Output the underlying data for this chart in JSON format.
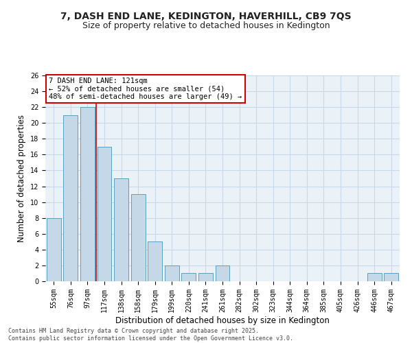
{
  "title": "7, DASH END LANE, KEDINGTON, HAVERHILL, CB9 7QS",
  "subtitle": "Size of property relative to detached houses in Kedington",
  "xlabel": "Distribution of detached houses by size in Kedington",
  "ylabel": "Number of detached properties",
  "categories": [
    "55sqm",
    "76sqm",
    "97sqm",
    "117sqm",
    "138sqm",
    "158sqm",
    "179sqm",
    "199sqm",
    "220sqm",
    "241sqm",
    "261sqm",
    "282sqm",
    "302sqm",
    "323sqm",
    "344sqm",
    "364sqm",
    "385sqm",
    "405sqm",
    "426sqm",
    "446sqm",
    "467sqm"
  ],
  "values": [
    8,
    21,
    22,
    17,
    13,
    11,
    5,
    2,
    1,
    1,
    2,
    0,
    0,
    0,
    0,
    0,
    0,
    0,
    0,
    1,
    1
  ],
  "bar_color": "#c5d8e8",
  "bar_edge_color": "#5a9fc0",
  "vline_x": 2.5,
  "vline_color": "#cc0000",
  "annotation_line1": "7 DASH END LANE: 121sqm",
  "annotation_line2": "← 52% of detached houses are smaller (54)",
  "annotation_line3": "48% of semi-detached houses are larger (49) →",
  "annotation_box_color": "#ffffff",
  "annotation_box_edge_color": "#cc0000",
  "ylim": [
    0,
    26
  ],
  "yticks": [
    0,
    2,
    4,
    6,
    8,
    10,
    12,
    14,
    16,
    18,
    20,
    22,
    24,
    26
  ],
  "grid_color": "#c8d8e8",
  "bg_color": "#eaf2f8",
  "footer": "Contains HM Land Registry data © Crown copyright and database right 2025.\nContains public sector information licensed under the Open Government Licence v3.0.",
  "title_fontsize": 10,
  "subtitle_fontsize": 9,
  "xlabel_fontsize": 8.5,
  "ylabel_fontsize": 8.5,
  "tick_fontsize": 7,
  "annotation_fontsize": 7.5,
  "footer_fontsize": 6
}
